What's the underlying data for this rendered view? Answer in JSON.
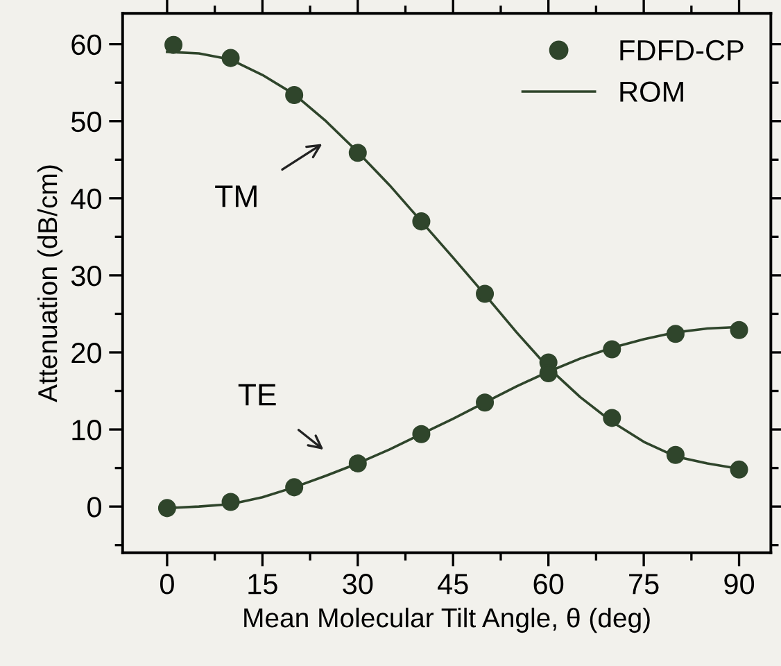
{
  "chart_data": {
    "type": "scatter",
    "xlabel": "Mean Molecular Tilt Angle, θ (deg)",
    "ylabel": "Attenuation (dB/cm)",
    "series": [
      {
        "name": "FDFD-CP",
        "marker": "circle",
        "color": "#2f452b",
        "x": [
          1,
          10,
          20,
          30,
          40,
          50,
          60,
          70,
          80,
          90
        ],
        "values": [
          59.9,
          58.2,
          53.4,
          45.9,
          37.0,
          27.6,
          18.7,
          11.5,
          6.7,
          4.8
        ]
      },
      {
        "marker": "circle",
        "color": "#2f452b",
        "x": [
          0,
          10,
          20,
          30,
          40,
          50,
          60,
          70,
          80,
          90
        ],
        "values": [
          -0.2,
          0.6,
          2.5,
          5.6,
          9.4,
          13.5,
          17.3,
          20.4,
          22.4,
          22.9
        ]
      },
      {
        "name": "ROM",
        "type": "line",
        "marker": "none",
        "color": "#2f452b",
        "x": [
          0,
          5,
          10,
          15,
          20,
          25,
          30,
          35,
          40,
          45,
          50,
          55,
          60,
          65,
          70,
          75,
          80,
          85,
          90
        ],
        "values": [
          59.0,
          58.8,
          58.0,
          56.0,
          53.5,
          50.0,
          46.0,
          41.7,
          37.0,
          32.3,
          27.5,
          22.6,
          18.0,
          14.2,
          11.0,
          8.4,
          6.5,
          5.6,
          4.9
        ]
      },
      {
        "type": "line",
        "marker": "none",
        "color": "#2f452b",
        "x": [
          0,
          5,
          10,
          15,
          20,
          25,
          30,
          35,
          40,
          45,
          50,
          55,
          60,
          65,
          70,
          75,
          80,
          85,
          90
        ],
        "values": [
          -0.2,
          0.0,
          0.3,
          1.2,
          2.5,
          4.0,
          5.6,
          7.4,
          9.4,
          11.4,
          13.5,
          15.6,
          17.5,
          19.2,
          20.6,
          21.7,
          22.6,
          23.1,
          23.3
        ]
      }
    ],
    "annotations": [
      "TM",
      "TE"
    ],
    "xlim": [
      -7,
      95
    ],
    "ylim": [
      -6,
      64
    ],
    "xticks": [
      0,
      15,
      30,
      45,
      60,
      75,
      90
    ],
    "yticks": [
      0,
      10,
      20,
      30,
      40,
      50,
      60
    ],
    "line_style": "solid",
    "grid": false,
    "legend": "top right"
  }
}
